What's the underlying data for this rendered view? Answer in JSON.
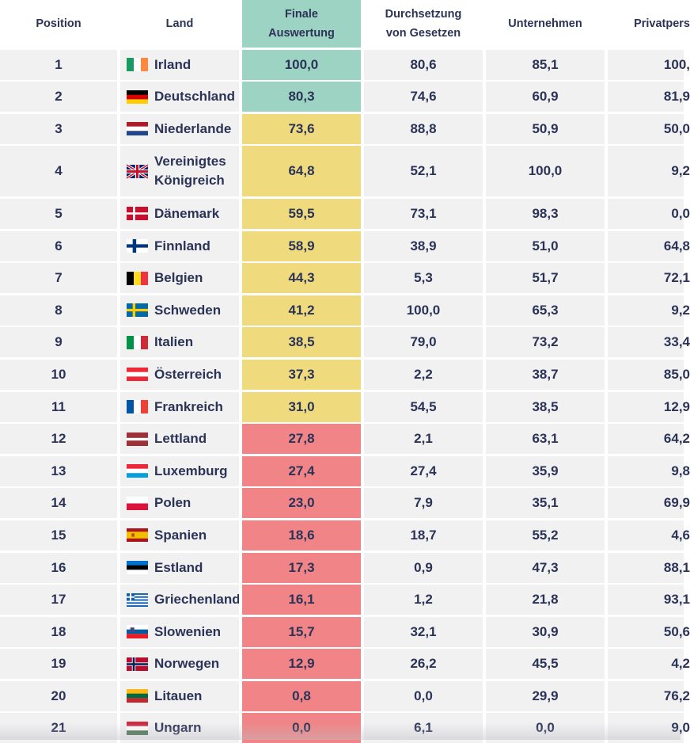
{
  "table": {
    "headers": {
      "position": "Position",
      "land": "Land",
      "final": [
        "Finale",
        "Auswertung"
      ],
      "enforcement": [
        "Durchsetzung",
        "von Gesetzen"
      ],
      "companies": "Unternehmen",
      "private": "Privatpers"
    },
    "rows": [
      {
        "pos": "1",
        "country": "Irland",
        "final": "100,0",
        "enforcement": "80,6",
        "companies": "85,1",
        "private": "100,",
        "tier": "green",
        "flag": "ie"
      },
      {
        "pos": "2",
        "country": "Deutschland",
        "final": "80,3",
        "enforcement": "74,6",
        "companies": "60,9",
        "private": "81,9",
        "tier": "green",
        "flag": "de"
      },
      {
        "pos": "3",
        "country": "Niederlande",
        "final": "73,6",
        "enforcement": "88,8",
        "companies": "50,9",
        "private": "50,0",
        "tier": "yellow",
        "flag": "nl"
      },
      {
        "pos": "4",
        "country": [
          "Vereinigtes",
          "Königreich"
        ],
        "final": "64,8",
        "enforcement": "52,1",
        "companies": "100,0",
        "private": "9,2",
        "tier": "yellow",
        "flag": "gb"
      },
      {
        "pos": "5",
        "country": "Dänemark",
        "final": "59,5",
        "enforcement": "73,1",
        "companies": "98,3",
        "private": "0,0",
        "tier": "yellow",
        "flag": "dk"
      },
      {
        "pos": "6",
        "country": "Finnland",
        "final": "58,9",
        "enforcement": "38,9",
        "companies": "51,0",
        "private": "64,8",
        "tier": "yellow",
        "flag": "fi"
      },
      {
        "pos": "7",
        "country": "Belgien",
        "final": "44,3",
        "enforcement": "5,3",
        "companies": "51,7",
        "private": "72,1",
        "tier": "yellow",
        "flag": "be"
      },
      {
        "pos": "8",
        "country": "Schweden",
        "final": "41,2",
        "enforcement": "100,0",
        "companies": "65,3",
        "private": "9,2",
        "tier": "yellow",
        "flag": "se"
      },
      {
        "pos": "9",
        "country": "Italien",
        "final": "38,5",
        "enforcement": "79,0",
        "companies": "73,2",
        "private": "33,4",
        "tier": "yellow",
        "flag": "it"
      },
      {
        "pos": "10",
        "country": "Österreich",
        "final": "37,3",
        "enforcement": "2,2",
        "companies": "38,7",
        "private": "85,0",
        "tier": "yellow",
        "flag": "at"
      },
      {
        "pos": "11",
        "country": "Frankreich",
        "final": "31,0",
        "enforcement": "54,5",
        "companies": "38,5",
        "private": "12,9",
        "tier": "yellow",
        "flag": "fr"
      },
      {
        "pos": "12",
        "country": "Lettland",
        "final": "27,8",
        "enforcement": "2,1",
        "companies": "63,1",
        "private": "64,2",
        "tier": "red",
        "flag": "lv"
      },
      {
        "pos": "13",
        "country": "Luxemburg",
        "final": "27,4",
        "enforcement": "27,4",
        "companies": "35,9",
        "private": "9,8",
        "tier": "red",
        "flag": "lu"
      },
      {
        "pos": "14",
        "country": "Polen",
        "final": "23,0",
        "enforcement": "7,9",
        "companies": "35,1",
        "private": "69,9",
        "tier": "red",
        "flag": "pl"
      },
      {
        "pos": "15",
        "country": "Spanien",
        "final": "18,6",
        "enforcement": "18,7",
        "companies": "55,2",
        "private": "4,6",
        "tier": "red",
        "flag": "es"
      },
      {
        "pos": "16",
        "country": "Estland",
        "final": "17,3",
        "enforcement": "0,9",
        "companies": "47,3",
        "private": "88,1",
        "tier": "red",
        "flag": "ee"
      },
      {
        "pos": "17",
        "country": "Griechenland",
        "final": "16,1",
        "enforcement": "1,2",
        "companies": "21,8",
        "private": "93,1",
        "tier": "red",
        "flag": "gr"
      },
      {
        "pos": "18",
        "country": "Slowenien",
        "final": "15,7",
        "enforcement": "32,1",
        "companies": "30,9",
        "private": "50,6",
        "tier": "red",
        "flag": "si"
      },
      {
        "pos": "19",
        "country": "Norwegen",
        "final": "12,9",
        "enforcement": "26,2",
        "companies": "45,5",
        "private": "4,2",
        "tier": "red",
        "flag": "no"
      },
      {
        "pos": "20",
        "country": "Litauen",
        "final": "0,8",
        "enforcement": "0,0",
        "companies": "29,9",
        "private": "76,2",
        "tier": "red",
        "flag": "lt"
      },
      {
        "pos": "21",
        "country": "Ungarn",
        "final": "0,0",
        "enforcement": "6,1",
        "companies": "0,0",
        "private": "9,0",
        "tier": "red",
        "flag": "hu"
      }
    ]
  }
}
